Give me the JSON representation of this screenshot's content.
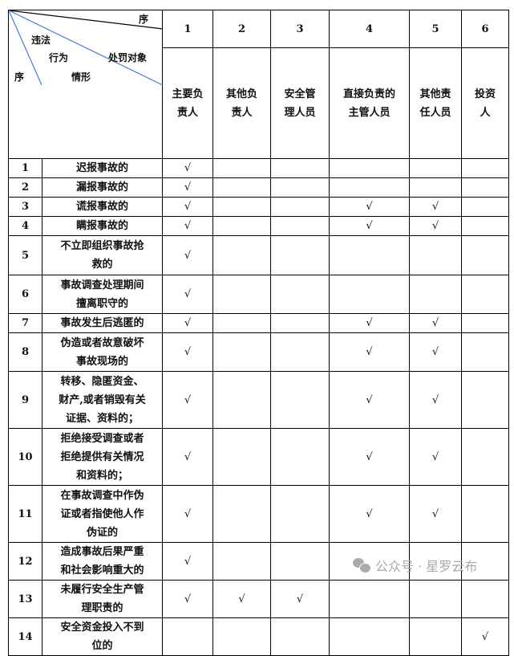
{
  "header": {
    "corner": {
      "top_label": "序",
      "violation": "违法",
      "behavior": "行为",
      "target": "处罚对象",
      "row_no": "序",
      "situation": "情形"
    },
    "col_numbers": [
      "1",
      "2",
      "3",
      "4",
      "5",
      "6"
    ],
    "col_labels": [
      "主要负\n责人",
      "其他负\n责人",
      "安全管\n理人员",
      "直接负责的\n主管人员",
      "其他责\n任人员",
      "投资\n人"
    ]
  },
  "check_mark": "√",
  "rows": [
    {
      "no": "1",
      "text": "迟报事故的",
      "checks": [
        1
      ]
    },
    {
      "no": "2",
      "text": "漏报事故的",
      "checks": [
        1
      ]
    },
    {
      "no": "3",
      "text": "谎报事故的",
      "checks": [
        1,
        4,
        5
      ]
    },
    {
      "no": "4",
      "text": "瞒报事故的",
      "checks": [
        1,
        4,
        5
      ]
    },
    {
      "no": "5",
      "text": "不立即组织事故抢\n救的",
      "checks": [
        1
      ]
    },
    {
      "no": "6",
      "text": "事故调查处理期间\n擅离职守的",
      "checks": [
        1
      ]
    },
    {
      "no": "7",
      "text": "事故发生后逃匿的",
      "checks": [
        1,
        4,
        5
      ]
    },
    {
      "no": "8",
      "text": "伪造或者故意破坏\n事故现场的",
      "checks": [
        1,
        4,
        5
      ]
    },
    {
      "no": "9",
      "text": "转移、隐匿资金、\n财产,或者销毁有关\n证据、资料的；",
      "checks": [
        1,
        4,
        5
      ]
    },
    {
      "no": "10",
      "text": "拒绝接受调查或者\n拒绝提供有关情况\n和资料的；",
      "checks": [
        1,
        4,
        5
      ]
    },
    {
      "no": "11",
      "text": "在事故调查中作伪\n证或者指使他人作\n伪证的",
      "checks": [
        1,
        4,
        5
      ]
    },
    {
      "no": "12",
      "text": "造成事故后果严重\n和社会影响重大的",
      "checks": [
        1
      ]
    },
    {
      "no": "13",
      "text": "未履行安全生产管\n理职责的",
      "checks": [
        1,
        2,
        3
      ]
    },
    {
      "no": "14",
      "text": "安全资金投入不到\n位的",
      "checks": [
        6
      ]
    }
  ],
  "watermark": {
    "icon": "wechat-icon",
    "text": "公众号 · 星罗云布"
  },
  "colors": {
    "diagonal_blue": "#4a7fd6",
    "border": "#000000",
    "watermark": "#aaaaaa"
  }
}
